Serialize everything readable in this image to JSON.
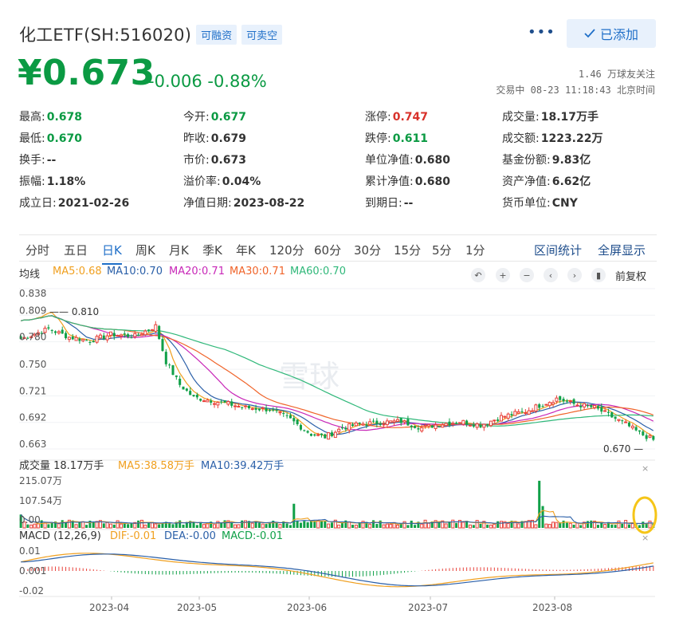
{
  "header": {
    "title": "化工ETF(SH:516020)",
    "tags": [
      "可融资",
      "可卖空"
    ],
    "more_label": "•••",
    "add_label": "已添加"
  },
  "quote": {
    "price": "¥0.673",
    "change": "-0.006 -0.88%",
    "followers": "1.46 万球友关注",
    "trade_time": "交易中 08-23 11:18:43 北京时间"
  },
  "stats": [
    {
      "label": "最高:",
      "value": "0.678",
      "color": "down"
    },
    {
      "label": "今开:",
      "value": "0.677",
      "color": "down"
    },
    {
      "label": "涨停:",
      "value": "0.747",
      "color": "up"
    },
    {
      "label": "成交量:",
      "value": "18.17万手",
      "color": ""
    },
    {
      "label": "最低:",
      "value": "0.670",
      "color": "down"
    },
    {
      "label": "昨收:",
      "value": "0.679",
      "color": ""
    },
    {
      "label": "跌停:",
      "value": "0.611",
      "color": "down"
    },
    {
      "label": "成交额:",
      "value": "1223.22万",
      "color": ""
    },
    {
      "label": "换手:",
      "value": "--",
      "color": ""
    },
    {
      "label": "市价:",
      "value": "0.673",
      "color": ""
    },
    {
      "label": "单位净值:",
      "value": "0.680",
      "color": ""
    },
    {
      "label": "基金份额:",
      "value": "9.83亿",
      "color": ""
    },
    {
      "label": "振幅:",
      "value": "1.18%",
      "color": ""
    },
    {
      "label": "溢价率:",
      "value": "0.04%",
      "color": ""
    },
    {
      "label": "累计净值:",
      "value": "0.680",
      "color": ""
    },
    {
      "label": "资产净值:",
      "value": "6.62亿",
      "color": ""
    },
    {
      "label": "成立日:",
      "value": "2021-02-26",
      "color": ""
    },
    {
      "label": "净值日期:",
      "value": "2023-08-22",
      "color": ""
    },
    {
      "label": "到期日:",
      "value": "--",
      "color": ""
    },
    {
      "label": "货币单位:",
      "value": "CNY",
      "color": ""
    }
  ],
  "periods": [
    "分时",
    "五日",
    "日K",
    "周K",
    "月K",
    "季K",
    "年K",
    "120分",
    "60分",
    "30分",
    "15分",
    "5分",
    "1分"
  ],
  "active_period": "日K",
  "period_actions": [
    "区间统计",
    "全屏显示"
  ],
  "ma_legend": [
    {
      "label": "均线",
      "color": "#333333"
    },
    {
      "label": "MA5:0.68",
      "color": "#f0a020"
    },
    {
      "label": "MA10:0.70",
      "color": "#2a5fa8"
    },
    {
      "label": "MA20:0.71",
      "color": "#c828b8"
    },
    {
      "label": "MA30:0.71",
      "color": "#f0642a"
    },
    {
      "label": "MA60:0.70",
      "color": "#30b87a"
    }
  ],
  "chart_controls": [
    "undo-icon",
    "zoom-in-icon",
    "zoom-out-icon",
    "left-arrow-icon",
    "right-arrow-icon",
    "candle-icon"
  ],
  "adjust_label": "前复权",
  "colors": {
    "up": "#e8413a",
    "down": "#10a048",
    "accent": "#1f6fc8"
  },
  "chart_data": {
    "type": "candlestick",
    "price_axis": {
      "ticks": [
        "0.838",
        "0.809",
        "0.780",
        "0.750",
        "0.721",
        "0.692",
        "0.663"
      ],
      "range": [
        0.663,
        0.838
      ]
    },
    "annotations": {
      "high": "0.810",
      "low": "0.670"
    },
    "x_ticks": [
      "2023-04",
      "2023-05",
      "2023-06",
      "2023-07",
      "2023-08"
    ],
    "price_path": [
      [
        0,
        0.783
      ],
      [
        8,
        0.794
      ],
      [
        14,
        0.785
      ],
      [
        20,
        0.781
      ],
      [
        26,
        0.788
      ],
      [
        33,
        0.786
      ],
      [
        39,
        0.797
      ],
      [
        42,
        0.758
      ],
      [
        46,
        0.733
      ],
      [
        50,
        0.719
      ],
      [
        55,
        0.716
      ],
      [
        60,
        0.712
      ],
      [
        65,
        0.708
      ],
      [
        72,
        0.706
      ],
      [
        78,
        0.695
      ],
      [
        84,
        0.679
      ],
      [
        88,
        0.676
      ],
      [
        93,
        0.686
      ],
      [
        98,
        0.69
      ],
      [
        104,
        0.692
      ],
      [
        110,
        0.693
      ],
      [
        116,
        0.686
      ],
      [
        121,
        0.69
      ],
      [
        127,
        0.693
      ],
      [
        133,
        0.689
      ],
      [
        139,
        0.698
      ],
      [
        146,
        0.704
      ],
      [
        151,
        0.712
      ],
      [
        155,
        0.718
      ],
      [
        160,
        0.712
      ],
      [
        166,
        0.708
      ],
      [
        170,
        0.7
      ],
      [
        175,
        0.69
      ],
      [
        179,
        0.68
      ],
      [
        183,
        0.673
      ]
    ],
    "volume": {
      "title": "成交量 18.17万手",
      "legend": [
        {
          "label": "MA5:38.58万手",
          "color": "#f0a020"
        },
        {
          "label": "MA10:39.42万手",
          "color": "#2a5fa8"
        }
      ],
      "ticks": [
        "215.07万",
        "107.54万",
        "0.00"
      ],
      "range": [
        0,
        215.07
      ],
      "spikes": [
        [
          0,
          58
        ],
        [
          79,
          105
        ],
        [
          150,
          205
        ],
        [
          151,
          95
        ]
      ]
    },
    "macd": {
      "title": "MACD (12,26,9)",
      "legend": [
        {
          "label": "DIF:-0.01",
          "color": "#f0a020"
        },
        {
          "label": "DEA:-0.00",
          "color": "#2a5fa8"
        },
        {
          "label": "MACD:-0.01",
          "color": "#10a048"
        }
      ],
      "ticks": [
        "0.01",
        "0.001",
        "-0.02"
      ]
    }
  },
  "watermark": "雪球"
}
